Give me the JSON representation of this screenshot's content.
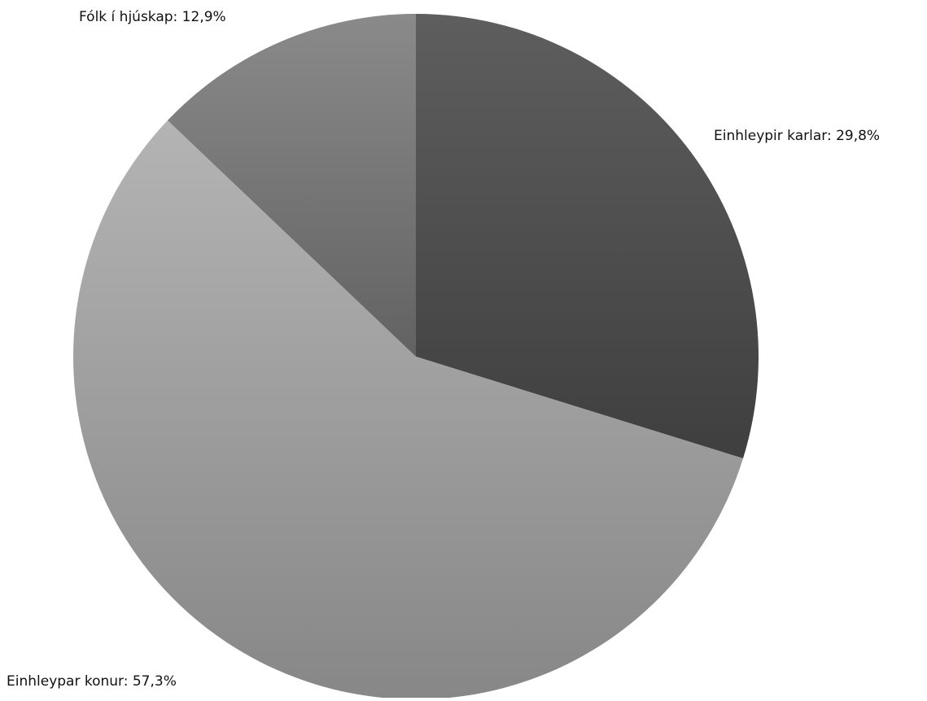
{
  "chart_data": {
    "type": "pie",
    "slices": [
      {
        "label": "Einhleypir karlar",
        "value": 29.8,
        "value_text": "29,8%",
        "color_light": "#5e5e5e",
        "color_dark": "#3f3f3f"
      },
      {
        "label": "Einhleypar konur",
        "value": 57.3,
        "value_text": "57,3%",
        "color_light": "#b4b4b4",
        "color_dark": "#878787"
      },
      {
        "label": "Fólk í hjúskap",
        "value": 12.9,
        "value_text": "12,9%",
        "color_light": "#8a8a8a",
        "color_dark": "#626262"
      }
    ],
    "start_angle": "12 o'clock",
    "direction": "clockwise",
    "data_labels": "outside, category name and percentage",
    "legend": "none"
  }
}
